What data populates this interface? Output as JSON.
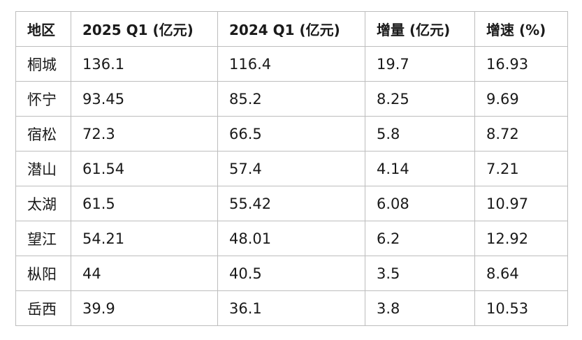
{
  "table": {
    "headers": [
      "地区",
      "2025 Q1 (亿元)",
      "2024 Q1 (亿元)",
      "增量 (亿元)",
      "增速 (%)"
    ],
    "rows": [
      [
        "桐城",
        "136.1",
        "116.4",
        "19.7",
        "16.93"
      ],
      [
        "怀宁",
        "93.45",
        "85.2",
        "8.25",
        "9.69"
      ],
      [
        "宿松",
        "72.3",
        "66.5",
        "5.8",
        "8.72"
      ],
      [
        "潜山",
        "61.54",
        "57.4",
        "4.14",
        "7.21"
      ],
      [
        "太湖",
        "61.5",
        "55.42",
        "6.08",
        "10.97"
      ],
      [
        "望江",
        "54.21",
        "48.01",
        "6.2",
        "12.92"
      ],
      [
        "枞阳",
        "44",
        "40.5",
        "3.5",
        "8.64"
      ],
      [
        "岳西",
        "39.9",
        "36.1",
        "3.8",
        "10.53"
      ]
    ]
  },
  "colors": {
    "border": "#bdbdbd",
    "text": "#1a1a1a",
    "background": "#ffffff"
  }
}
